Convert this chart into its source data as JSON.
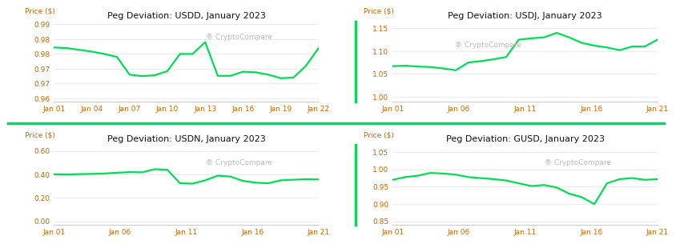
{
  "usdd": {
    "title": "Peg Deviation: USDD, January 2023",
    "ylabel": "Price ($)",
    "xticks": [
      "Jan 01",
      "Jan 04",
      "Jan 07",
      "Jan 10",
      "Jan 13",
      "Jan 16",
      "Jan 19",
      "Jan 22"
    ],
    "ylim": [
      0.964,
      0.991
    ],
    "yticks": [
      0.965,
      0.97,
      0.975,
      0.98,
      0.985,
      0.99
    ],
    "x": [
      0,
      1,
      2,
      3,
      4,
      5,
      6,
      7,
      8,
      9,
      10,
      11,
      12,
      13,
      14,
      15,
      16,
      17,
      18,
      19,
      20,
      21
    ],
    "y": [
      0.9822,
      0.982,
      0.9814,
      0.9808,
      0.98,
      0.979,
      0.973,
      0.9725,
      0.9728,
      0.9742,
      0.98,
      0.98,
      0.984,
      0.9726,
      0.9726,
      0.974,
      0.9738,
      0.973,
      0.9718,
      0.972,
      0.976,
      0.982
    ]
  },
  "usdj": {
    "title": "Peg Deviation: USDJ, January 2023",
    "ylabel": "Price ($)",
    "xticks": [
      "Jan 01",
      "Jan 06",
      "Jan 11",
      "Jan 16",
      "Jan 21"
    ],
    "ylim": [
      0.99,
      1.165
    ],
    "yticks": [
      1.0,
      1.05,
      1.1,
      1.15
    ],
    "x": [
      0,
      1,
      2,
      3,
      4,
      5,
      6,
      7,
      8,
      9,
      10,
      11,
      12,
      13,
      14,
      15,
      16,
      17,
      18,
      19,
      20,
      21
    ],
    "y": [
      1.067,
      1.068,
      1.066,
      1.065,
      1.062,
      1.058,
      1.075,
      1.078,
      1.082,
      1.087,
      1.125,
      1.128,
      1.13,
      1.14,
      1.13,
      1.118,
      1.112,
      1.108,
      1.102,
      1.11,
      1.11,
      1.125
    ]
  },
  "usdn": {
    "title": "Peg Deviation: USDN, January 2023",
    "ylabel": "Price ($)",
    "xticks": [
      "Jan 01",
      "Jan 06",
      "Jan 11",
      "Jan 16",
      "Jan 21"
    ],
    "ylim": [
      -0.03,
      0.65
    ],
    "yticks": [
      0.0,
      0.2,
      0.4,
      0.6
    ],
    "x": [
      0,
      1,
      2,
      3,
      4,
      5,
      6,
      7,
      8,
      9,
      10,
      11,
      12,
      13,
      14,
      15,
      16,
      17,
      18,
      19,
      20,
      21
    ],
    "y": [
      0.402,
      0.4,
      0.403,
      0.405,
      0.408,
      0.415,
      0.42,
      0.418,
      0.445,
      0.44,
      0.325,
      0.322,
      0.35,
      0.39,
      0.382,
      0.345,
      0.33,
      0.325,
      0.35,
      0.355,
      0.36,
      0.358
    ]
  },
  "gusd": {
    "title": "Peg Deviation: GUSD, January 2023",
    "ylabel": "Price ($)",
    "xticks": [
      "Jan 01",
      "Jan 06",
      "Jan 11",
      "Jan 16",
      "Jan 21"
    ],
    "ylim": [
      0.84,
      1.07
    ],
    "yticks": [
      0.85,
      0.9,
      0.95,
      1.0,
      1.05
    ],
    "x": [
      0,
      1,
      2,
      3,
      4,
      5,
      6,
      7,
      8,
      9,
      10,
      11,
      12,
      13,
      14,
      15,
      16,
      17,
      18,
      19,
      20,
      21
    ],
    "y": [
      0.97,
      0.978,
      0.982,
      0.99,
      0.988,
      0.985,
      0.978,
      0.975,
      0.972,
      0.968,
      0.96,
      0.952,
      0.955,
      0.948,
      0.93,
      0.92,
      0.9,
      0.96,
      0.972,
      0.975,
      0.97,
      0.972
    ]
  },
  "line_color": "#00dd55",
  "title_color": "#111111",
  "tick_color": "#cc6600",
  "watermark_color": "#bbbbbb",
  "bg_color": "#ffffff",
  "divider_color": "#00dd55",
  "grid_color": "#e8e8e8",
  "spine_color": "#cccccc"
}
